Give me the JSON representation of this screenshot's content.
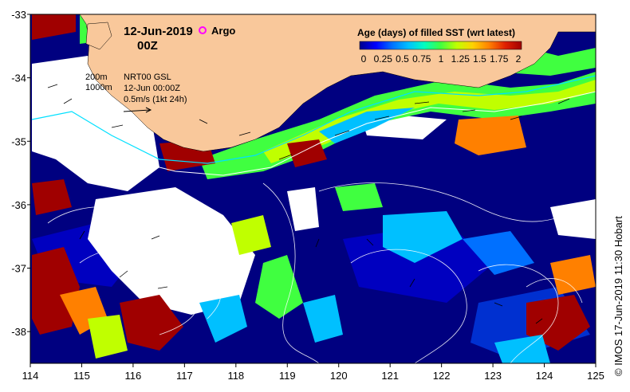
{
  "title": {
    "date": "12-Jun-2019",
    "time": "00Z"
  },
  "argo": {
    "label": "Argo",
    "color": "#ff00ff"
  },
  "info": {
    "contour_200": "200m",
    "contour_1000": "1000m",
    "product": "NRT00 GSL",
    "datetime": "12-Jun 00:00Z",
    "scale": "0.5m/s (1kt 24h)"
  },
  "colorbar": {
    "title": "Age (days) of filled SST (wrt latest)",
    "ticks": [
      "0",
      "0.25",
      "0.5",
      "0.75",
      "1",
      "1.25",
      "1.5",
      "1.75",
      "2"
    ],
    "colors": [
      "#00008b",
      "#0000ff",
      "#0070ff",
      "#00c0ff",
      "#00ffc0",
      "#40ff40",
      "#c0ff00",
      "#ffd000",
      "#ff8000",
      "#e02000",
      "#a00000"
    ]
  },
  "axes": {
    "x_ticks": [
      "114",
      "115",
      "116",
      "117",
      "118",
      "119",
      "120",
      "121",
      "122",
      "123",
      "124",
      "125"
    ],
    "y_ticks": [
      "-33",
      "-34",
      "-35",
      "-36",
      "-37",
      "-38"
    ],
    "lon_range": [
      114,
      125
    ],
    "lat_range": [
      -38.5,
      -33
    ]
  },
  "credit": "© IMOS 17-Jun-2019 11:30 Hobart",
  "colors": {
    "land": "#f9c89b",
    "deep_ocean": "#000080",
    "cloud": "#ffffff"
  }
}
